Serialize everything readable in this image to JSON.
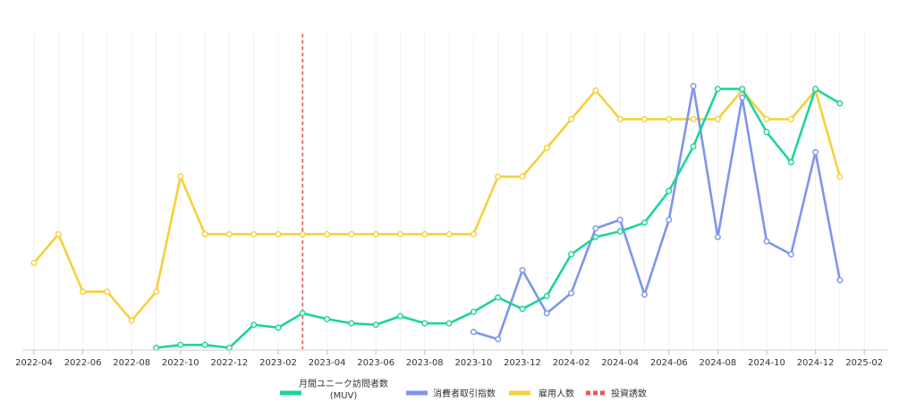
{
  "chart_data": {
    "type": "line",
    "title": "",
    "xlabel": "",
    "ylabel": "",
    "x": [
      "2022-04",
      "2022-05",
      "2022-06",
      "2022-07",
      "2022-08",
      "2022-09",
      "2022-10",
      "2022-11",
      "2022-12",
      "2023-01",
      "2023-02",
      "2023-03",
      "2023-04",
      "2023-05",
      "2023-06",
      "2023-07",
      "2023-08",
      "2023-09",
      "2023-10",
      "2023-11",
      "2023-12",
      "2024-01",
      "2024-02",
      "2024-03",
      "2024-04",
      "2024-05",
      "2024-06",
      "2024-07",
      "2024-08",
      "2024-09",
      "2024-10",
      "2024-11",
      "2024-12",
      "2025-01"
    ],
    "x_tick_labels": [
      "2022-04",
      "2022-06",
      "2022-08",
      "2022-10",
      "2022-12",
      "2023-02",
      "2023-04",
      "2023-06",
      "2023-08",
      "2023-10",
      "2023-12",
      "2024-02",
      "2024-04",
      "2024-06",
      "2024-08",
      "2024-10",
      "2024-12",
      "2025-02"
    ],
    "ylim": [
      0,
      100
    ],
    "grid": "vertical",
    "legend_position": "bottom",
    "series": [
      {
        "name": "月間ユニーク訪問者数\n(MUV)",
        "color": "#1ed39c",
        "style": "solid",
        "values": [
          null,
          null,
          null,
          null,
          null,
          0.5,
          1.5,
          1.5,
          0.5,
          8.5,
          7.5,
          12.5,
          10.5,
          9,
          8.5,
          11.5,
          9,
          9,
          13,
          18,
          14,
          18.5,
          33,
          39,
          41,
          44,
          55,
          70.5,
          90.5,
          90.5,
          75.5,
          65,
          90.5,
          85.5
        ]
      },
      {
        "name": "消費者取引指数",
        "color": "#7f95ec",
        "style": "solid",
        "values": [
          null,
          null,
          null,
          null,
          null,
          null,
          null,
          null,
          null,
          null,
          null,
          null,
          null,
          null,
          null,
          null,
          null,
          null,
          6,
          3.5,
          27.5,
          12.5,
          19.5,
          42,
          45,
          19,
          45,
          91.5,
          39,
          87.5,
          37.5,
          33,
          68.5,
          24
        ]
      },
      {
        "name": "雇用人数",
        "color": "#f5d13a",
        "style": "solid",
        "values": [
          30,
          40,
          20,
          20,
          10,
          20,
          60,
          40,
          40,
          40,
          40,
          40,
          40,
          40,
          40,
          40,
          40,
          40,
          40,
          60,
          60,
          70,
          80,
          90,
          80,
          80,
          80,
          80,
          80,
          90,
          80,
          80,
          90,
          60
        ]
      }
    ],
    "annotations": [
      {
        "type": "vertical-line",
        "x": "2023-03",
        "name": "投資誘致",
        "color": "#e8575a",
        "style": "dashed"
      }
    ]
  }
}
